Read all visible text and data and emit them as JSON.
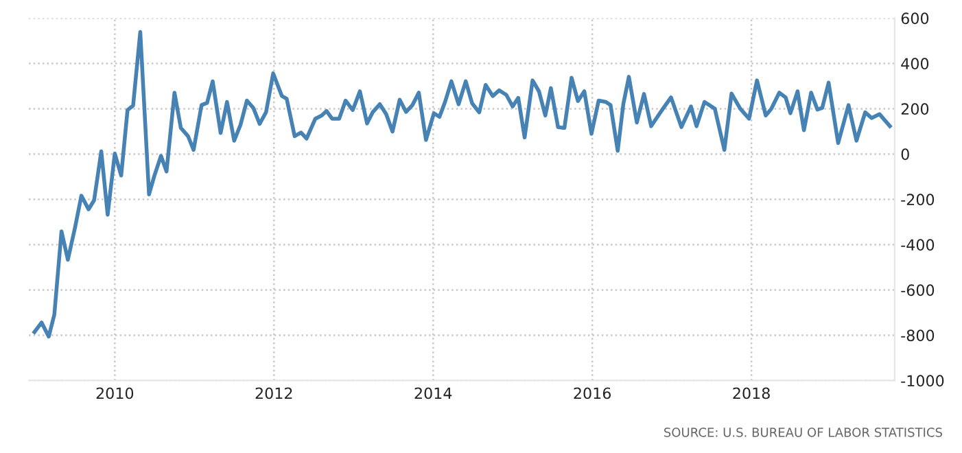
{
  "chart_data": {
    "type": "line",
    "x": [
      2008.99,
      2009.08,
      2009.17,
      2009.24,
      2009.33,
      2009.41,
      2009.5,
      2009.58,
      2009.67,
      2009.74,
      2009.83,
      2009.91,
      2010.0,
      2010.08,
      2010.16,
      2010.23,
      2010.32,
      2010.43,
      2010.5,
      2010.58,
      2010.65,
      2010.75,
      2010.83,
      2010.92,
      2010.99,
      2011.09,
      2011.16,
      2011.23,
      2011.33,
      2011.41,
      2011.5,
      2011.58,
      2011.66,
      2011.74,
      2011.82,
      2011.9,
      2011.99,
      2012.1,
      2012.16,
      2012.26,
      2012.34,
      2012.41,
      2012.52,
      2012.6,
      2012.66,
      2012.73,
      2012.82,
      2012.9,
      2012.99,
      2013.08,
      2013.17,
      2013.24,
      2013.33,
      2013.41,
      2013.49,
      2013.58,
      2013.66,
      2013.74,
      2013.82,
      2013.91,
      2014.01,
      2014.08,
      2014.15,
      2014.23,
      2014.32,
      2014.41,
      2014.49,
      2014.58,
      2014.66,
      2014.75,
      2014.83,
      2014.92,
      2015.0,
      2015.07,
      2015.15,
      2015.25,
      2015.33,
      2015.41,
      2015.48,
      2015.57,
      2015.65,
      2015.74,
      2015.82,
      2015.9,
      2015.99,
      2016.08,
      2016.17,
      2016.23,
      2016.32,
      2016.39,
      2016.46,
      2016.56,
      2016.65,
      2016.74,
      2016.83,
      2016.9,
      2016.99,
      2017.12,
      2017.24,
      2017.31,
      2017.41,
      2017.54,
      2017.66,
      2017.75,
      2017.86,
      2017.97,
      2018.07,
      2018.18,
      2018.25,
      2018.35,
      2018.43,
      2018.49,
      2018.58,
      2018.66,
      2018.75,
      2018.83,
      2018.89,
      2018.97,
      2019.09,
      2019.22,
      2019.32,
      2019.43,
      2019.51,
      2019.61,
      2019.74
    ],
    "series": [
      {
        "color": "#4682b4",
        "values": [
          -786,
          -744,
          -806,
          -709,
          -341,
          -467,
          -325,
          -184,
          -244,
          -204,
          12,
          -268,
          2,
          -95,
          194,
          214,
          539,
          -178,
          -93,
          -8,
          -77,
          271,
          115,
          79,
          18,
          216,
          226,
          321,
          93,
          230,
          59,
          129,
          236,
          204,
          133,
          184,
          356,
          256,
          244,
          79,
          95,
          68,
          156,
          170,
          190,
          156,
          156,
          236,
          194,
          277,
          135,
          184,
          220,
          176,
          99,
          240,
          186,
          216,
          271,
          62,
          180,
          164,
          230,
          321,
          220,
          321,
          224,
          184,
          305,
          256,
          281,
          261,
          210,
          248,
          73,
          325,
          277,
          170,
          291,
          119,
          115,
          337,
          234,
          277,
          89,
          236,
          230,
          216,
          14,
          220,
          341,
          139,
          265,
          123,
          170,
          206,
          250,
          119,
          210,
          123,
          230,
          200,
          18,
          267,
          200,
          156,
          325,
          170,
          200,
          271,
          250,
          180,
          277,
          105,
          271,
          196,
          204,
          315,
          48,
          216,
          59,
          184,
          159,
          176,
          123
        ]
      }
    ],
    "xlim": [
      2008.92,
      2019.8
    ],
    "xticks": [
      2010,
      2012,
      2014,
      2016,
      2018
    ],
    "ylim": [
      -1000,
      600
    ],
    "yticks": [
      -1000,
      -800,
      -600,
      -400,
      -200,
      0,
      200,
      400,
      600
    ],
    "grid": true,
    "line_style": "solid",
    "annotations": [
      "SOURCE: U.S. BUREAU OF LABOR STATISTICS"
    ]
  }
}
